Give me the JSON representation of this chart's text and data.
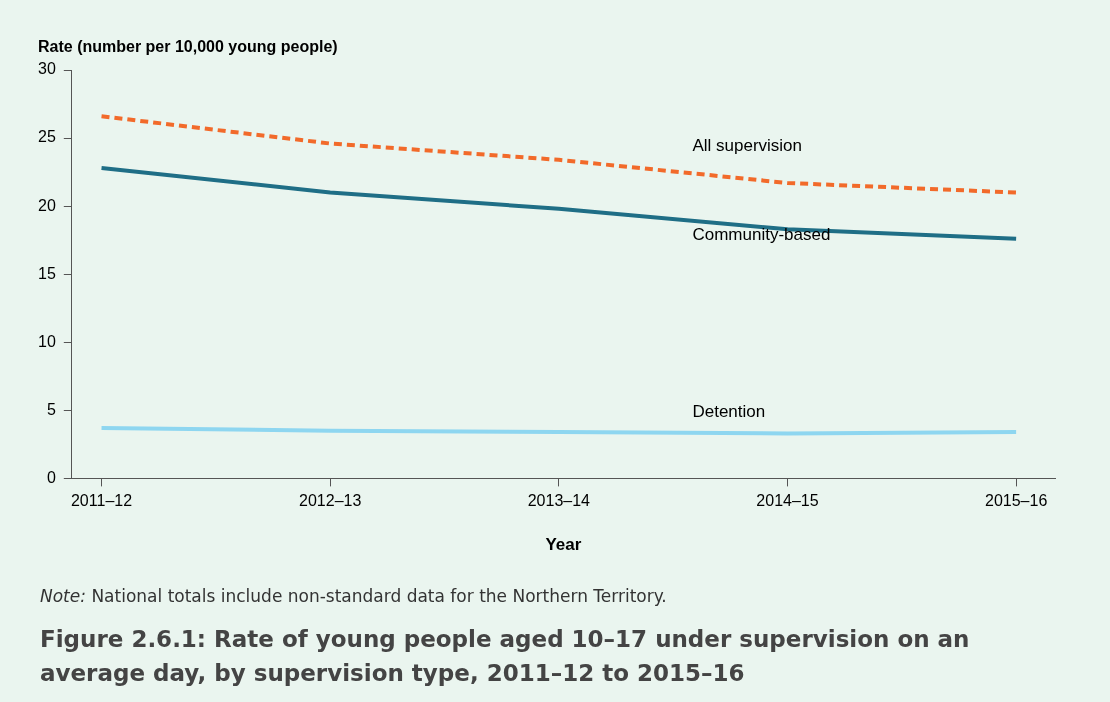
{
  "chart_data": {
    "type": "line",
    "title": "Figure 2.6.1: Rate of young people aged 10–17 under supervision on an average day, by supervision type, 2011–12 to 2015–16",
    "xlabel": "Year",
    "ylabel": "Rate (number per 10,000 young people)",
    "categories": [
      "2011–12",
      "2012–13",
      "2013–14",
      "2014–15",
      "2015–16"
    ],
    "series": [
      {
        "name": "All supervision",
        "color": "#f26a2a",
        "line_style": "dashed",
        "values": [
          26.6,
          24.6,
          23.4,
          21.7,
          21.0
        ]
      },
      {
        "name": "Community-based",
        "color": "#1f6e86",
        "values": [
          22.8,
          21.0,
          19.8,
          18.3,
          17.6
        ]
      },
      {
        "name": "Detention",
        "color": "#8ed6f0",
        "values": [
          3.7,
          3.5,
          3.4,
          3.3,
          3.4
        ]
      }
    ],
    "ylim": [
      0,
      30
    ],
    "yticks": [
      0,
      5,
      10,
      15,
      20,
      25,
      30
    ],
    "grid": false,
    "legend": false,
    "marker": "none",
    "line_style": "solid",
    "annotations": [
      "Note: National totals include non-standard data for the Northern Territory."
    ]
  }
}
